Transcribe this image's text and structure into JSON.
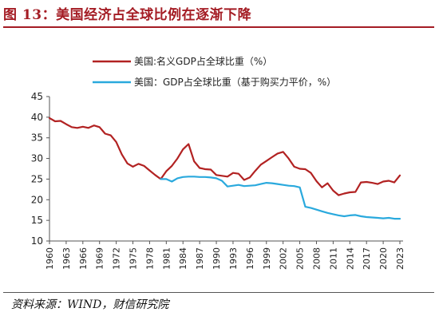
{
  "figure": {
    "title": "图 13：美国经济占全球比例在逐渐下降",
    "source": "资料来源：WIND，财信研究院"
  },
  "chart_data": {
    "type": "line",
    "xlabel": "",
    "ylabel": "",
    "x_ticks": [
      "1960",
      "1963",
      "1966",
      "1969",
      "1972",
      "1975",
      "1978",
      "1981",
      "1984",
      "1987",
      "1990",
      "1993",
      "1996",
      "1999",
      "2002",
      "2005",
      "2008",
      "2011",
      "2014",
      "2017",
      "2020",
      "2023"
    ],
    "y_ticks": [
      10,
      15,
      20,
      25,
      30,
      35,
      40,
      45
    ],
    "ylim": [
      10,
      45
    ],
    "xlim": [
      1960,
      2023
    ],
    "grid": false,
    "legend_position": "top-left",
    "series": [
      {
        "name": "美国:名义GDP占全球比重（%）",
        "color": "#b22222",
        "x": [
          1960,
          1961,
          1962,
          1963,
          1964,
          1965,
          1966,
          1967,
          1968,
          1969,
          1970,
          1971,
          1972,
          1973,
          1974,
          1975,
          1976,
          1977,
          1978,
          1979,
          1980,
          1981,
          1982,
          1983,
          1984,
          1985,
          1986,
          1987,
          1988,
          1989,
          1990,
          1991,
          1992,
          1993,
          1994,
          1995,
          1996,
          1997,
          1998,
          1999,
          2000,
          2001,
          2002,
          2003,
          2004,
          2005,
          2006,
          2007,
          2008,
          2009,
          2010,
          2011,
          2012,
          2013,
          2014,
          2015,
          2016,
          2017,
          2018,
          2019,
          2020,
          2021,
          2022,
          2023
        ],
        "values": [
          39.8,
          39.0,
          39.1,
          38.3,
          37.6,
          37.4,
          37.7,
          37.4,
          38.0,
          37.6,
          36.0,
          35.6,
          34.0,
          31.0,
          28.8,
          28.0,
          28.7,
          28.2,
          27.1,
          26.0,
          25.0,
          26.9,
          28.2,
          30.0,
          32.2,
          33.5,
          29.3,
          27.7,
          27.4,
          27.3,
          26.0,
          25.8,
          25.6,
          26.5,
          26.3,
          24.8,
          25.4,
          27.0,
          28.5,
          29.4,
          30.3,
          31.2,
          31.6,
          30.0,
          28.0,
          27.5,
          27.4,
          26.5,
          24.5,
          23.0,
          24.0,
          22.2,
          21.1,
          21.5,
          21.8,
          21.9,
          24.2,
          24.3,
          24.1,
          23.8,
          24.4,
          24.6,
          24.2,
          25.9
        ]
      },
      {
        "name": "美国：GDP占全球比重（基于购买力平价，%）",
        "color": "#2aa9dd",
        "x": [
          1980,
          1981,
          1982,
          1983,
          1984,
          1985,
          1986,
          1987,
          1988,
          1989,
          1990,
          1991,
          1992,
          1993,
          1994,
          1995,
          1996,
          1997,
          1998,
          1999,
          2000,
          2001,
          2002,
          2003,
          2004,
          2005,
          2006,
          2007,
          2008,
          2009,
          2010,
          2011,
          2012,
          2013,
          2014,
          2015,
          2016,
          2017,
          2018,
          2019,
          2020,
          2021,
          2022,
          2023
        ],
        "values": [
          25.0,
          25.0,
          24.4,
          25.2,
          25.5,
          25.6,
          25.6,
          25.5,
          25.5,
          25.4,
          25.2,
          24.6,
          23.2,
          23.4,
          23.6,
          23.3,
          23.4,
          23.5,
          23.8,
          24.1,
          24.0,
          23.8,
          23.6,
          23.4,
          23.3,
          23.0,
          18.3,
          18.0,
          17.6,
          17.2,
          16.8,
          16.5,
          16.2,
          16.0,
          16.2,
          16.3,
          16.0,
          15.8,
          15.7,
          15.6,
          15.5,
          15.6,
          15.4,
          15.4
        ]
      }
    ]
  }
}
